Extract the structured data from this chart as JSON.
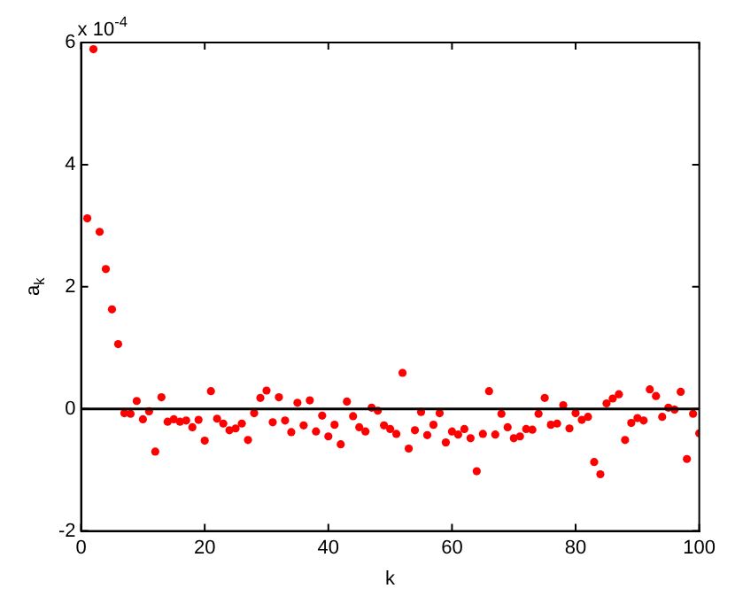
{
  "chart_data": {
    "type": "scatter",
    "xlabel": "k",
    "ylabel": "a$_{k}$",
    "annotations": [
      "x 10$^{-4}$"
    ],
    "x": [
      1,
      2,
      3,
      4,
      5,
      6,
      7,
      8,
      9,
      10,
      11,
      12,
      13,
      14,
      15,
      16,
      17,
      18,
      19,
      20,
      21,
      22,
      23,
      24,
      25,
      26,
      27,
      28,
      29,
      30,
      31,
      32,
      33,
      34,
      35,
      36,
      37,
      38,
      39,
      40,
      41,
      42,
      43,
      44,
      45,
      46,
      47,
      48,
      49,
      50,
      51,
      52,
      53,
      54,
      55,
      56,
      57,
      58,
      59,
      60,
      61,
      62,
      63,
      64,
      65,
      66,
      67,
      68,
      69,
      70,
      71,
      72,
      73,
      74,
      75,
      76,
      77,
      78,
      79,
      80,
      81,
      82,
      83,
      84,
      85,
      86,
      87,
      88,
      89,
      90,
      91,
      92,
      93,
      94,
      95,
      96,
      97,
      98,
      99,
      100
    ],
    "series": [
      {
        "color": "#ff0000",
        "values": [
          3.12,
          5.89,
          2.9,
          2.29,
          1.63,
          1.06,
          -0.07,
          -0.08,
          0.13,
          -0.17,
          -0.04,
          -0.7,
          0.19,
          -0.21,
          -0.17,
          -0.21,
          -0.19,
          -0.3,
          -0.18,
          -0.52,
          0.29,
          -0.16,
          -0.24,
          -0.35,
          -0.32,
          -0.24,
          -0.51,
          -0.07,
          0.18,
          0.3,
          -0.22,
          0.19,
          -0.19,
          -0.38,
          0.1,
          -0.27,
          0.14,
          -0.37,
          -0.11,
          -0.45,
          -0.26,
          -0.58,
          0.12,
          -0.12,
          -0.3,
          -0.37,
          0.02,
          -0.03,
          -0.27,
          -0.33,
          -0.41,
          0.59,
          -0.65,
          -0.35,
          -0.05,
          -0.43,
          -0.26,
          -0.07,
          -0.55,
          -0.37,
          -0.42,
          -0.33,
          -0.48,
          -1.02,
          -0.41,
          0.29,
          -0.42,
          -0.08,
          -0.3,
          -0.48,
          -0.45,
          -0.33,
          -0.34,
          -0.08,
          0.18,
          -0.26,
          -0.24,
          0.06,
          -0.32,
          -0.07,
          -0.18,
          -0.13,
          -0.87,
          -1.07,
          0.09,
          0.17,
          0.24,
          -0.51,
          -0.23,
          -0.15,
          -0.19,
          0.32,
          0.21,
          -0.13,
          0.02,
          -0.01,
          0.28,
          -0.82,
          -0.08,
          -0.4
        ]
      }
    ],
    "xlim": [
      0,
      100
    ],
    "xticks": [
      0,
      20,
      40,
      60,
      80,
      100
    ],
    "ylim": [
      -2,
      6
    ],
    "yticks": [
      -2,
      0,
      2,
      4,
      6
    ],
    "ref_lines": [
      {
        "axis": "y",
        "value": 0,
        "color": "#000000"
      }
    ],
    "grid": false,
    "legend": false,
    "marker": "circle"
  }
}
